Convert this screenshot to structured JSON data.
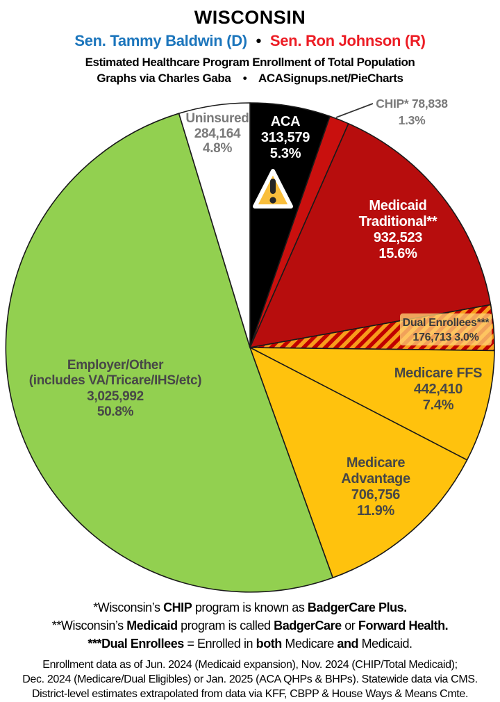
{
  "header": {
    "state": "WISCONSIN",
    "senator_dem": "Sen. Tammy Baldwin (D)",
    "bullet": "•",
    "senator_rep": "Sen. Ron Johnson (R)",
    "subtitle": "Estimated Healthcare Program Enrollment of Total Population",
    "credit_left": "Graphs via Charles Gaba",
    "credit_bullet": "•",
    "credit_right": "ACASignups.net/PieCharts"
  },
  "colors": {
    "dem_blue": "#1B75BC",
    "rep_red": "#EC1C24",
    "pie_stroke": "#1A1A1A",
    "gray_label": "#7A7A7A",
    "dark_label": "#474747",
    "dual_label": "#3B3B3B",
    "white_label": "#FFFFFF",
    "leader_line": "#333333",
    "dual_patch": "#FFD073",
    "warning_fill": "#F9BE3C",
    "warning_glyph": "#262626"
  },
  "chart_data": {
    "type": "pie",
    "title": "WISCONSIN — Estimated Healthcare Program Enrollment of Total Population",
    "start_angle_deg": 0,
    "direction": "clockwise",
    "total_pct": 100.1,
    "slices": [
      {
        "label": "ACA",
        "value": 313579,
        "pct": 5.3,
        "color": "#000000",
        "text_color": "#FFFFFF",
        "label_lines": [
          "ACA",
          "313,579",
          "5.3%"
        ]
      },
      {
        "label": "CHIP*",
        "value": 78838,
        "pct": 1.3,
        "color": "#C9100E",
        "text_color": "#7A7A7A",
        "label_outside": true,
        "label_lines": [
          "CHIP* 78,838",
          "1.3%"
        ]
      },
      {
        "label": "Medicaid Traditional**",
        "value": 932523,
        "pct": 15.6,
        "color": "#B70D0D",
        "text_color": "#FFFFFF",
        "label_lines": [
          "Medicaid",
          "Traditional**",
          "932,523",
          "15.6%"
        ]
      },
      {
        "label": "Dual Enrollees***",
        "value": 176713,
        "pct": 3.0,
        "color": "hatched",
        "hatch_colors": [
          "#C00000",
          "#F89C1C"
        ],
        "text_color": "#3B3B3B",
        "label_lines": [
          "Dual Enrollees***",
          "176,713 3.0%"
        ]
      },
      {
        "label": "Medicare FFS",
        "value": 442410,
        "pct": 7.4,
        "color": "#FFC20D",
        "text_color": "#474747",
        "label_lines": [
          "Medicare FFS",
          "442,410",
          "7.4%"
        ]
      },
      {
        "label": "Medicare Advantage",
        "value": 706756,
        "pct": 11.9,
        "color": "#FFC20D",
        "text_color": "#474747",
        "label_lines": [
          "Medicare",
          "Advantage",
          "706,756",
          "11.9%"
        ]
      },
      {
        "label": "Employer/Other (includes VA/Tricare/IHS/etc)",
        "value": 3025992,
        "pct": 50.8,
        "color": "#92D050",
        "text_color": "#474747",
        "label_lines": [
          "Employer/Other",
          "(includes VA/Tricare/IHS/etc)",
          "3,025,992",
          "50.8%"
        ]
      },
      {
        "label": "Uninsured",
        "value": 284164,
        "pct": 4.8,
        "color": "#FFFFFF",
        "text_color": "#7A7A7A",
        "label_lines": [
          "Uninsured",
          "284,164",
          "4.8%"
        ]
      }
    ]
  },
  "footnotes": [
    [
      {
        "text": "*Wisconsin’s ",
        "bold": false
      },
      {
        "text": "CHIP",
        "bold": true
      },
      {
        "text": " program is known as ",
        "bold": false
      },
      {
        "text": "BadgerCare Plus.",
        "bold": true
      }
    ],
    [
      {
        "text": "**Wisconsin’s ",
        "bold": false
      },
      {
        "text": "Medicaid",
        "bold": true
      },
      {
        "text": " program is called ",
        "bold": false
      },
      {
        "text": "BadgerCare",
        "bold": true
      },
      {
        "text": " or ",
        "bold": false
      },
      {
        "text": "Forward Health.",
        "bold": true
      }
    ],
    [
      {
        "text": "***Dual Enrollees",
        "bold": true
      },
      {
        "text": " = Enrolled in ",
        "bold": false
      },
      {
        "text": "both",
        "bold": true
      },
      {
        "text": " Medicare ",
        "bold": false
      },
      {
        "text": "and",
        "bold": true
      },
      {
        "text": " Medicaid.",
        "bold": false
      }
    ]
  ],
  "source_lines": [
    "Enrollment data as of Jun. 2024 (Medicaid expansion), Nov. 2024 (CHIP/Total Medicaid);",
    "Dec. 2024 (Medicare/Dual Eligibles) or Jan. 2025 (ACA QHPs & BHPs). Statewide data via CMS.",
    "District-level estimates extrapolated from data via KFF, CBPP & House Ways & Means Cmte."
  ]
}
